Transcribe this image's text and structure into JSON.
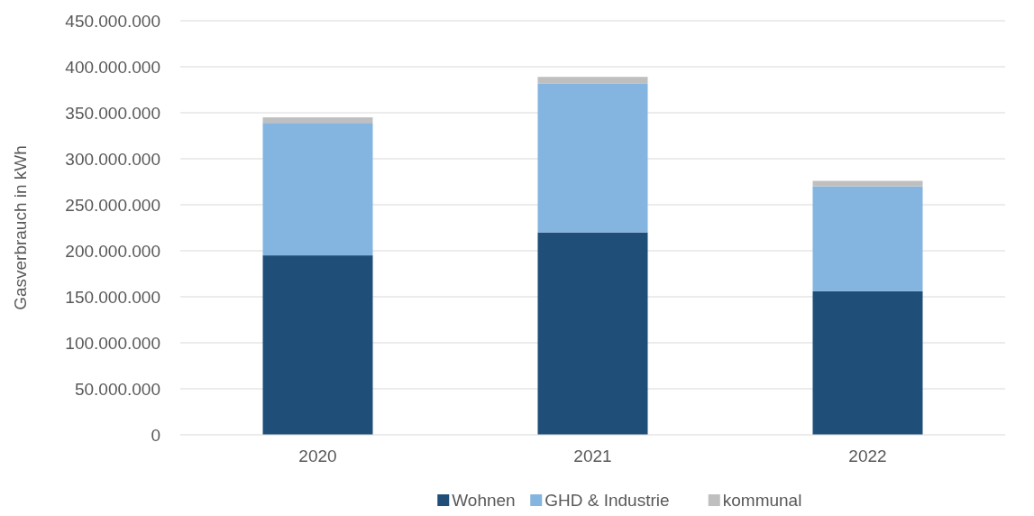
{
  "chart_data": {
    "type": "bar",
    "ylabel": "Gasverbrauch in kWh",
    "categories": [
      "2020",
      "2021",
      "2022"
    ],
    "stacked": true,
    "series": [
      {
        "name": "Wohnen",
        "color": "#1f4e79",
        "values": [
          195000000,
          220000000,
          156000000
        ]
      },
      {
        "name": "GHD & Industrie",
        "color": "#84b4e0",
        "values": [
          144000000,
          162000000,
          114000000
        ]
      },
      {
        "name": "kommunal",
        "color": "#bfbfbf",
        "values": [
          6000000,
          7000000,
          6000000
        ]
      }
    ],
    "ylim": [
      0,
      450000000
    ],
    "yticks": [
      0,
      {
        "value": 50000000,
        "label": "50.000.000"
      },
      {
        "value": 100000000,
        "label": "100.000.000"
      },
      {
        "value": 150000000,
        "label": "150.000.000"
      },
      {
        "value": 200000000,
        "label": "200.000.000"
      },
      {
        "value": 250000000,
        "label": "250.000.000"
      },
      {
        "value": 300000000,
        "label": "300.000.000"
      },
      {
        "value": 350000000,
        "label": "350.000.000"
      },
      {
        "value": 400000000,
        "label": "400.000.000"
      },
      {
        "value": 450000000,
        "label": "450.000.000"
      }
    ],
    "grid": "y",
    "legend": "bottom"
  }
}
